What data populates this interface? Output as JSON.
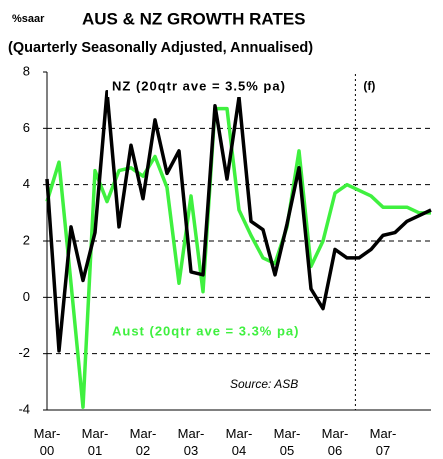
{
  "chart_data": {
    "type": "line",
    "unit_label": "%saar",
    "title": "AUS & NZ GROWTH RATES",
    "subtitle": "(Quarterly Seasonally Adjusted, Annualised)",
    "annotations": [
      "(f)",
      "Source: ASB"
    ],
    "categories": [
      "Mar-00",
      null,
      null,
      null,
      "Mar-01",
      null,
      null,
      null,
      "Mar-02",
      null,
      null,
      null,
      "Mar-03",
      null,
      null,
      null,
      "Mar-04",
      null,
      null,
      null,
      "Mar-05",
      null,
      null,
      null,
      "Mar-06",
      null,
      null,
      null,
      "Mar-07",
      null,
      null,
      null,
      null
    ],
    "series": [
      {
        "name": "Aust (20qtr ave = 3.3% pa)",
        "color": "#3ff03f",
        "values": [
          3.4,
          4.8,
          0.5,
          -3.9,
          4.5,
          3.4,
          4.5,
          4.6,
          4.3,
          5.0,
          3.9,
          0.5,
          3.6,
          0.2,
          6.7,
          6.7,
          3.1,
          2.2,
          1.4,
          1.2,
          2.5,
          5.2,
          1.1,
          2.0,
          3.7,
          4.0,
          3.8,
          3.6,
          3.2,
          3.2,
          3.2,
          3.0,
          3.0
        ]
      },
      {
        "name": "NZ (20qtr ave = 3.5% pa)",
        "color": "#000000",
        "values": [
          4.2,
          -1.9,
          2.5,
          0.6,
          2.3,
          7.3,
          2.5,
          5.4,
          3.5,
          6.3,
          4.4,
          5.2,
          0.9,
          0.8,
          6.8,
          4.2,
          7.1,
          2.7,
          2.4,
          0.8,
          2.6,
          4.6,
          0.3,
          -0.4,
          1.7,
          1.4,
          1.4,
          1.7,
          2.2,
          2.3,
          2.7,
          2.9,
          3.1
        ]
      }
    ],
    "ylim": [
      -4,
      8
    ],
    "yticks": [
      -4,
      -2,
      0,
      2,
      4,
      6,
      8
    ],
    "grid": true
  }
}
